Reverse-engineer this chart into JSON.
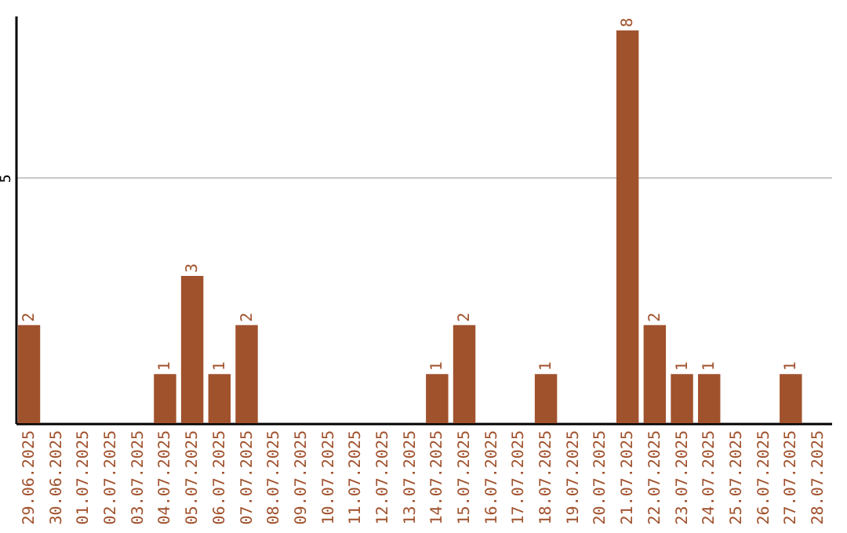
{
  "chart_data": {
    "type": "bar",
    "categories": [
      "29.06.2025",
      "30.06.2025",
      "01.07.2025",
      "02.07.2025",
      "03.07.2025",
      "04.07.2025",
      "05.07.2025",
      "06.07.2025",
      "07.07.2025",
      "08.07.2025",
      "09.07.2025",
      "10.07.2025",
      "11.07.2025",
      "12.07.2025",
      "13.07.2025",
      "14.07.2025",
      "15.07.2025",
      "16.07.2025",
      "17.07.2025",
      "18.07.2025",
      "19.07.2025",
      "20.07.2025",
      "21.07.2025",
      "22.07.2025",
      "23.07.2025",
      "24.07.2025",
      "25.07.2025",
      "26.07.2025",
      "27.07.2025",
      "28.07.2025"
    ],
    "values": [
      2,
      0,
      0,
      0,
      0,
      1,
      3,
      1,
      2,
      0,
      0,
      0,
      0,
      0,
      0,
      1,
      2,
      0,
      0,
      1,
      0,
      0,
      8,
      2,
      1,
      1,
      0,
      0,
      1,
      0
    ],
    "value_labels": [
      "2",
      null,
      null,
      null,
      null,
      "1",
      "3",
      "1",
      "2",
      null,
      null,
      null,
      null,
      null,
      null,
      "1",
      "2",
      null,
      null,
      "1",
      null,
      null,
      "8",
      "2",
      "1",
      "1",
      null,
      null,
      "1",
      null
    ],
    "color": "#a0522d",
    "ylim": [
      0,
      8.3
    ],
    "yticks": [
      5
    ],
    "grid": "y"
  }
}
